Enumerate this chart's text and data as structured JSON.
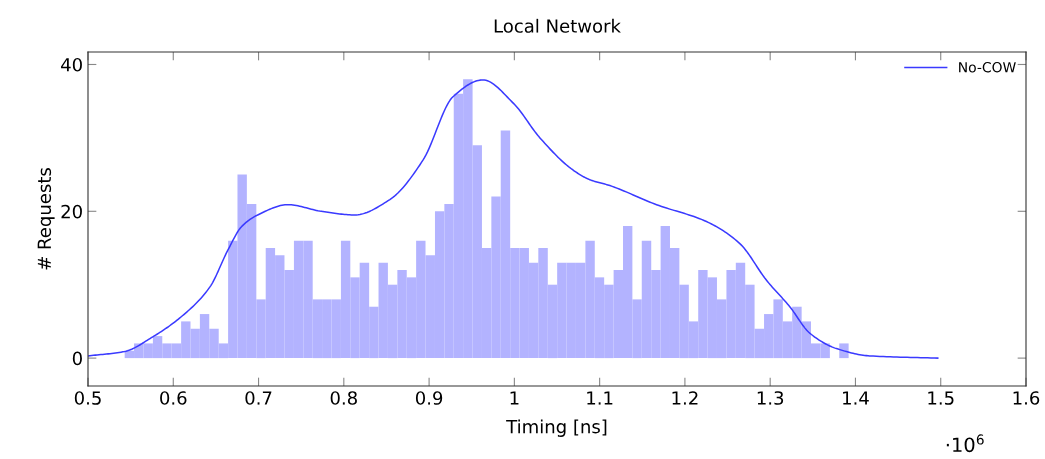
{
  "chart_data": {
    "type": "histogram",
    "title": "Local Network",
    "xlabel": "Timing [ns]",
    "ylabel": "# Requests",
    "annotations": [
      "·10$^{6}$"
    ],
    "xlim": [
      0.5,
      1.6
    ],
    "xticks": [
      0.5,
      0.6,
      0.7,
      0.8,
      0.9,
      1,
      1.1,
      1.2,
      1.3,
      1.4,
      1.5,
      1.6
    ],
    "ylim": [
      -3.8,
      41.7
    ],
    "yticks": [
      0,
      20,
      40
    ],
    "grid": false,
    "legend": "top right",
    "series": [
      {
        "type": "histogram",
        "color": "#b3b3ff",
        "bins": [
          0.543,
          0.554,
          0.5651,
          0.5761,
          0.5871,
          0.5981,
          0.6092,
          0.6202,
          0.6312,
          0.6422,
          0.6533,
          0.6643,
          0.6753,
          0.6863,
          0.6974,
          0.7084,
          0.7194,
          0.7304,
          0.7415,
          0.7525,
          0.7635,
          0.7745,
          0.7856,
          0.7966,
          0.8076,
          0.8186,
          0.8297,
          0.8407,
          0.8517,
          0.8628,
          0.8738,
          0.8848,
          0.8958,
          0.9069,
          0.9179,
          0.9289,
          0.9399,
          0.951,
          0.962,
          0.973,
          0.984,
          0.9951,
          1.0061,
          1.0171,
          1.0281,
          1.0392,
          1.0502,
          1.0612,
          1.0722,
          1.0833,
          1.0943,
          1.1053,
          1.1164,
          1.1274,
          1.1384,
          1.1494,
          1.1605,
          1.1715,
          1.1825,
          1.1935,
          1.2046,
          1.2156,
          1.2266,
          1.2376,
          1.2487,
          1.2597,
          1.2707,
          1.2817,
          1.2928,
          1.3038,
          1.3148,
          1.3258,
          1.3369,
          1.3479,
          1.3589,
          1.37,
          1.381,
          1.392
        ],
        "values": [
          1,
          2,
          2,
          3,
          2,
          2,
          5,
          4,
          6,
          4,
          2,
          16,
          25,
          21,
          8,
          15,
          14,
          12,
          16,
          16,
          8,
          8,
          8,
          16,
          11,
          13,
          7,
          13,
          10,
          12,
          11,
          16,
          14,
          20,
          21,
          36,
          38,
          29,
          15,
          22,
          31,
          15,
          15,
          13,
          15,
          10,
          13,
          13,
          13,
          16,
          11,
          10,
          12,
          18,
          8,
          16,
          12,
          18,
          15,
          10,
          5,
          12,
          11,
          8,
          12,
          13,
          10,
          4,
          6,
          8,
          5,
          7,
          5,
          2,
          2,
          0,
          2
        ]
      },
      {
        "type": "line",
        "name": "No-COW",
        "color": "#3a3aff",
        "marker": "none",
        "line_style": "solid",
        "x": [
          0.5,
          0.543,
          0.576,
          0.609,
          0.643,
          0.664,
          0.68,
          0.699,
          0.7345,
          0.7735,
          0.8127,
          0.854,
          0.893,
          0.928,
          0.963,
          0.999,
          1.03,
          1.069,
          1.0885,
          1.112,
          1.1667,
          1.2253,
          1.2644,
          1.2957,
          1.323,
          1.3464,
          1.3777,
          1.4167,
          1.4965
        ],
        "values": [
          0.3,
          0.9,
          2.9,
          5.6,
          9.7,
          14.7,
          17.9,
          19.5,
          20.9,
          20.0,
          19.5,
          21.6,
          27.0,
          35.6,
          37.9,
          34.7,
          30.0,
          25.6,
          24.3,
          23.5,
          20.9,
          18.6,
          15.6,
          10.6,
          7.0,
          3.4,
          1.3,
          0.3,
          0
        ]
      }
    ]
  }
}
